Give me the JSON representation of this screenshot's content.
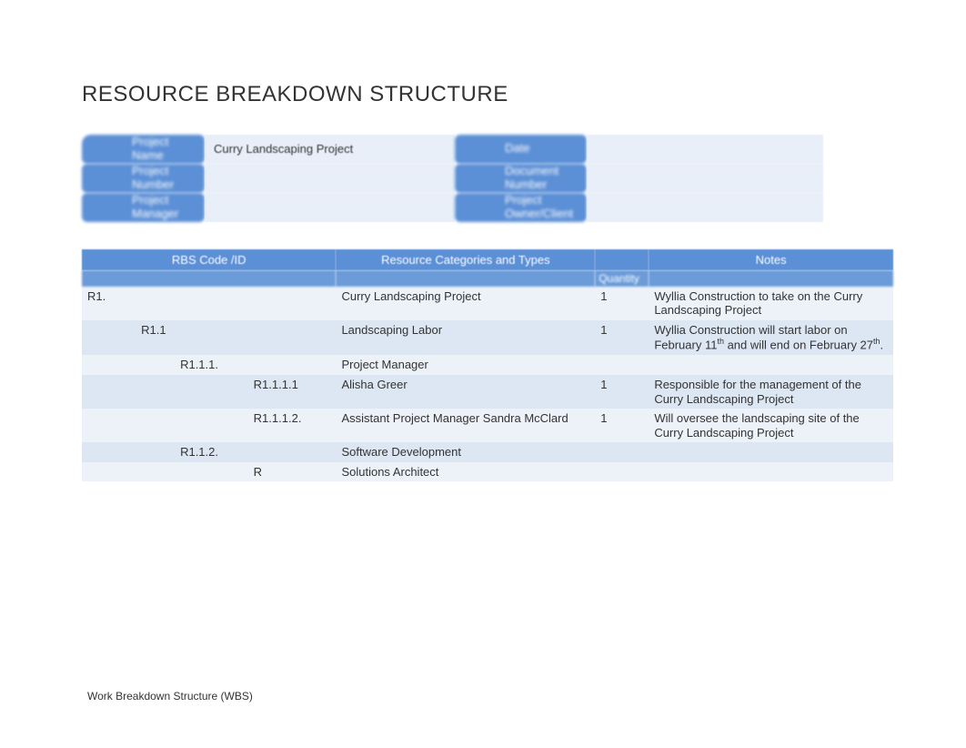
{
  "title": "RESOURCE BREAKDOWN STRUCTURE",
  "header": {
    "labels": {
      "projectName": "Project Name",
      "projectNumber": "Project Number",
      "projectManager": "Project Manager",
      "date": "Date",
      "documentNumber": "Document Number",
      "ownerClient": "Project Owner/Client"
    },
    "values": {
      "projectName": "Curry Landscaping Project",
      "projectNumber": "",
      "projectManager": "",
      "date": "",
      "documentNumber": "",
      "ownerClient": ""
    }
  },
  "table": {
    "headers": {
      "code": "RBS Code /ID",
      "categories": "Resource Categories and Types",
      "quantity": "Quantity",
      "notes": "Notes"
    },
    "colWidths": {
      "c1": 55,
      "c2": 40,
      "c3": 75,
      "c4": 80,
      "c5": 10,
      "resource": 265,
      "qty": 55,
      "notes": 250
    },
    "rows": [
      {
        "c1": "R1.",
        "c2": "",
        "c3": "",
        "c4": "",
        "resource": "Curry Landscaping Project",
        "qty": "1",
        "notes": "Wyllia Construction to take on the Curry Landscaping Project"
      },
      {
        "c1": "",
        "c2": "R1.1",
        "c3": "",
        "c4": "",
        "resource": "Landscaping Labor",
        "qty": "1",
        "notesHtml": "Wyllia Construction will start labor on February 11<sup>th</sup> and will end on February 27<sup>th</sup>."
      },
      {
        "c1": "",
        "c2": "",
        "c3": "R1.1.1.",
        "c4": "",
        "resource": "Project Manager",
        "qty": "",
        "notes": ""
      },
      {
        "c1": "",
        "c2": "",
        "c3": "",
        "c4": "R1.1.1.1",
        "resource": "Alisha Greer",
        "qty": "1",
        "notes": "Responsible for the management of the Curry Landscaping Project"
      },
      {
        "c1": "",
        "c2": "",
        "c3": "",
        "c4": "R1.1.1.2.",
        "resource": "Assistant Project Manager Sandra McClard",
        "qty": "1",
        "notes": "Will oversee the landscaping site of the Curry Landscaping Project"
      },
      {
        "c1": "",
        "c2": "",
        "c3": "R1.1.2.",
        "c4": "",
        "resource": "Software Development",
        "qty": "",
        "notes": ""
      },
      {
        "c1": "",
        "c2": "",
        "c3": "",
        "c4": "R",
        "resource": "Solutions Architect",
        "qty": "",
        "notes": ""
      }
    ]
  },
  "footer": "Work Breakdown Structure (WBS)",
  "colors": {
    "headerBg": "#5b8fd6",
    "headerText": "#ffffff",
    "rowOdd": "#edf2f9",
    "rowEven": "#dce7f3",
    "text": "#333333",
    "bg": "#ffffff"
  },
  "fonts": {
    "titleSize": 24,
    "bodySize": 13
  }
}
